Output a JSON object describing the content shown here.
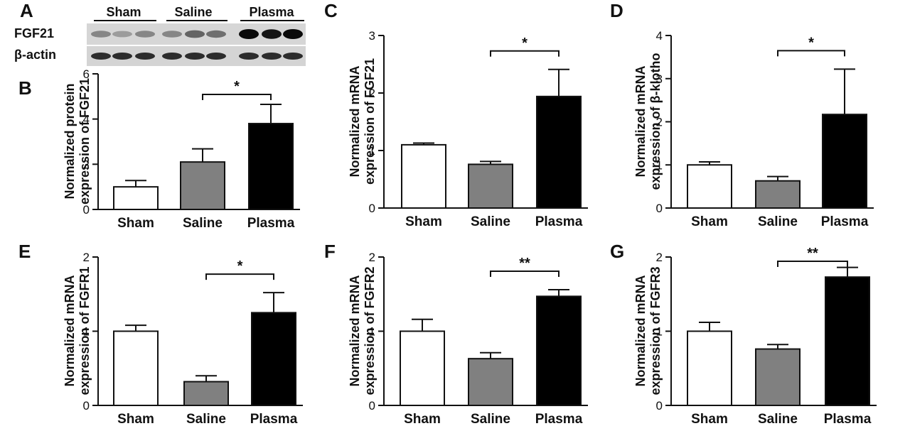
{
  "blot": {
    "panel_letter": "A",
    "groups": [
      "Sham",
      "Saline",
      "Plasma"
    ],
    "rows": [
      {
        "label": "FGF21",
        "intensities": [
          0.45,
          0.35,
          0.45,
          0.45,
          0.6,
          0.55,
          1.0,
          0.95,
          1.0
        ]
      },
      {
        "label": "β-actin",
        "intensities": [
          0.85,
          0.85,
          0.85,
          0.85,
          0.85,
          0.85,
          0.85,
          0.85,
          0.85
        ]
      }
    ]
  },
  "colors": {
    "sham": "#ffffff",
    "saline": "#808080",
    "plasma": "#000000",
    "edge": "#111111"
  },
  "chart_data": [
    {
      "panel": "B",
      "type": "bar",
      "ylabel": [
        "Normalized protein",
        "expression of FGF21"
      ],
      "categories": [
        "Sham",
        "Saline",
        "Plasma"
      ],
      "values": [
        1.0,
        2.1,
        3.8
      ],
      "errors": [
        0.28,
        0.58,
        0.85
      ],
      "ylim": [
        0,
        6
      ],
      "yticks": [
        0,
        2,
        4,
        6
      ],
      "sig": {
        "from": 1,
        "to": 2,
        "label": "*"
      }
    },
    {
      "panel": "C",
      "type": "bar",
      "ylabel": [
        "Normalized mRNA",
        "expression of FGF21"
      ],
      "categories": [
        "Sham",
        "Saline",
        "Plasma"
      ],
      "values": [
        1.1,
        0.76,
        1.94
      ],
      "errors": [
        0.03,
        0.05,
        0.47
      ],
      "ylim": [
        0,
        3
      ],
      "yticks": [
        0,
        1,
        2,
        3
      ],
      "sig": {
        "from": 1,
        "to": 2,
        "label": "*"
      }
    },
    {
      "panel": "D",
      "type": "bar",
      "ylabel": [
        "Normalized mRNA",
        "expression of β-klotho"
      ],
      "categories": [
        "Sham",
        "Saline",
        "Plasma"
      ],
      "values": [
        1.0,
        0.63,
        2.17
      ],
      "errors": [
        0.07,
        0.1,
        1.05
      ],
      "ylim": [
        0,
        4
      ],
      "yticks": [
        0,
        1,
        2,
        3,
        4
      ],
      "sig": {
        "from": 1,
        "to": 2,
        "label": "*"
      }
    },
    {
      "panel": "E",
      "type": "bar",
      "ylabel": [
        "Normalized mRNA",
        "expression of FGFR1"
      ],
      "categories": [
        "Sham",
        "Saline",
        "Plasma"
      ],
      "values": [
        1.0,
        0.32,
        1.25
      ],
      "errors": [
        0.08,
        0.08,
        0.27
      ],
      "ylim": [
        0,
        2
      ],
      "yticks": [
        0,
        1,
        2
      ],
      "sig": {
        "from": 1,
        "to": 2,
        "label": "*"
      }
    },
    {
      "panel": "F",
      "type": "bar",
      "ylabel": [
        "Normalized mRNA",
        "expression of FGFR2"
      ],
      "categories": [
        "Sham",
        "Saline",
        "Plasma"
      ],
      "values": [
        1.0,
        0.63,
        1.47
      ],
      "errors": [
        0.16,
        0.08,
        0.09
      ],
      "ylim": [
        0,
        2
      ],
      "yticks": [
        0,
        1,
        2
      ],
      "sig": {
        "from": 1,
        "to": 2,
        "label": "**"
      }
    },
    {
      "panel": "G",
      "type": "bar",
      "ylabel": [
        "Normalized mRNA",
        "expression of FGFR3"
      ],
      "categories": [
        "Sham",
        "Saline",
        "Plasma"
      ],
      "values": [
        1.0,
        0.76,
        1.73
      ],
      "errors": [
        0.12,
        0.06,
        0.13
      ],
      "ylim": [
        0,
        2
      ],
      "yticks": [
        0,
        1,
        2
      ],
      "sig": {
        "from": 1,
        "to": 2,
        "label": "**"
      }
    }
  ]
}
